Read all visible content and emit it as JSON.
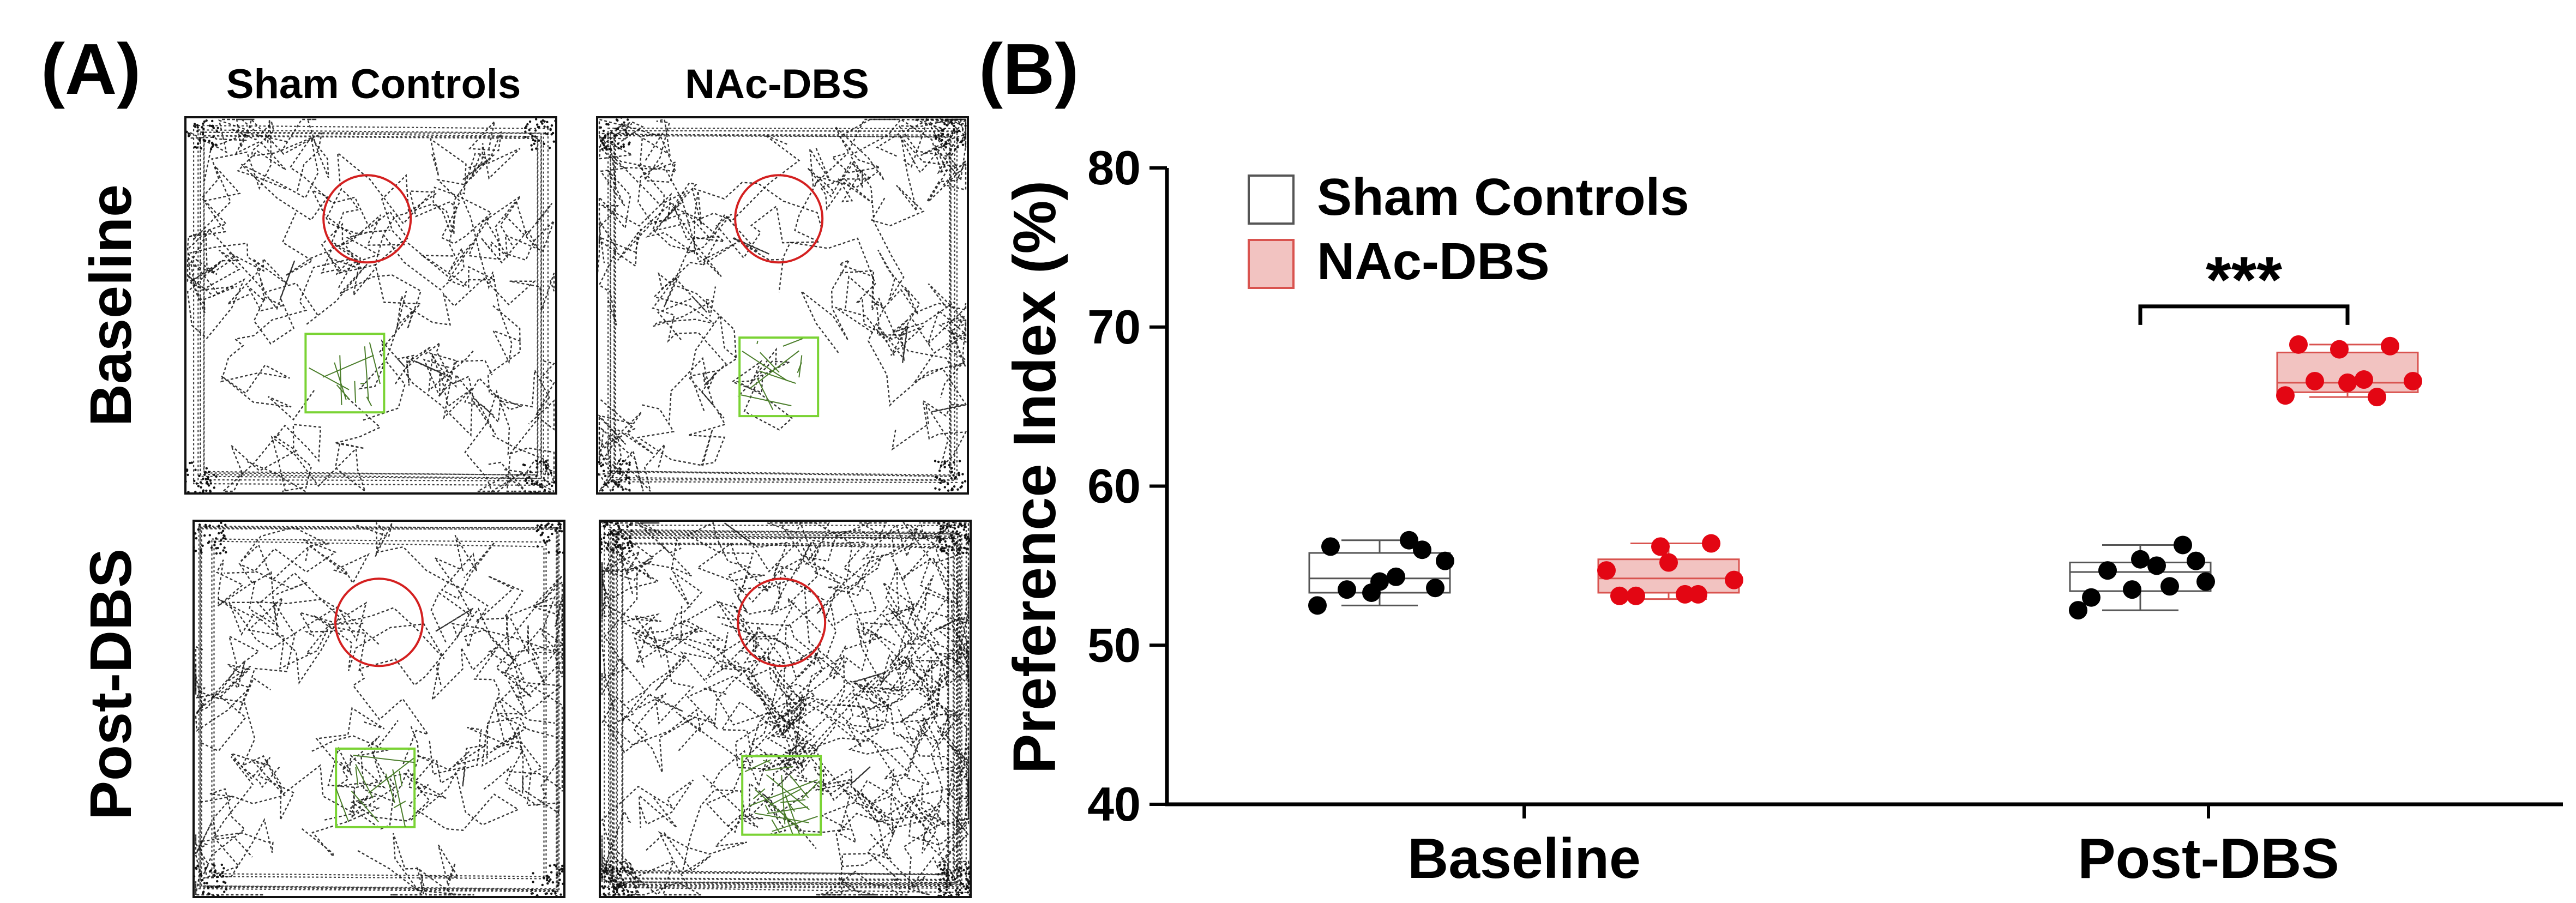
{
  "panel_a": {
    "label": "(A)",
    "column_titles": [
      "Sham Controls",
      "NAc-DBS"
    ],
    "row_titles": [
      "Baseline",
      "Post-DBS"
    ]
  },
  "panel_b": {
    "label": "(B)"
  },
  "colors": {
    "sham_box_fill": "#ffffff",
    "sham_box_stroke": "#555555",
    "sham_dot": "#000000",
    "dbs_box_fill": "#f2c3c1",
    "dbs_box_stroke": "#d9534f",
    "dbs_dot": "#e30613",
    "trace": "#111111",
    "circle_zone": "#d42020",
    "square_zone": "#7ad334"
  },
  "chart_data": {
    "type": "box",
    "title": "",
    "xlabel": "",
    "ylabel": "Preference Index (%)",
    "ylim": [
      40,
      80
    ],
    "yticks": [
      40,
      50,
      60,
      70,
      80
    ],
    "categories": [
      "Baseline",
      "Post-DBS"
    ],
    "legend": {
      "position": "top-left",
      "entries": [
        "Sham Controls",
        "NAc-DBS"
      ]
    },
    "series": [
      {
        "name": "Sham Controls",
        "groups": [
          {
            "category": "Baseline",
            "q1": 53.3,
            "median": 54.2,
            "q3": 55.8,
            "min": 52.5,
            "max": 56.6,
            "points": [
              52.5,
              53.5,
              53.3,
              54.3,
              56.0,
              55.3,
              56.2,
              54.0,
              56.6,
              53.6
            ]
          },
          {
            "category": "Post-DBS",
            "q1": 53.4,
            "median": 54.6,
            "q3": 55.2,
            "min": 52.2,
            "max": 56.3,
            "points": [
              52.2,
              54.7,
              53.5,
              55.0,
              56.3,
              54.0,
              53.0,
              55.4,
              53.7,
              55.3
            ]
          }
        ]
      },
      {
        "name": "NAc-DBS",
        "groups": [
          {
            "category": "Baseline",
            "q1": 53.3,
            "median": 54.2,
            "q3": 55.4,
            "min": 52.9,
            "max": 56.4,
            "points": [
              54.7,
              53.1,
              56.2,
              53.2,
              56.4,
              54.1,
              53.1,
              55.2,
              53.2
            ]
          },
          {
            "category": "Post-DBS",
            "q1": 65.9,
            "median": 66.5,
            "q3": 68.4,
            "min": 65.6,
            "max": 68.9,
            "points": [
              65.7,
              66.6,
              68.6,
              66.7,
              68.8,
              66.6,
              68.9,
              66.5,
              65.6
            ]
          }
        ]
      }
    ],
    "annotations": [
      {
        "text": "***",
        "category": "Post-DBS",
        "between": [
          "Sham Controls",
          "NAc-DBS"
        ]
      }
    ]
  }
}
